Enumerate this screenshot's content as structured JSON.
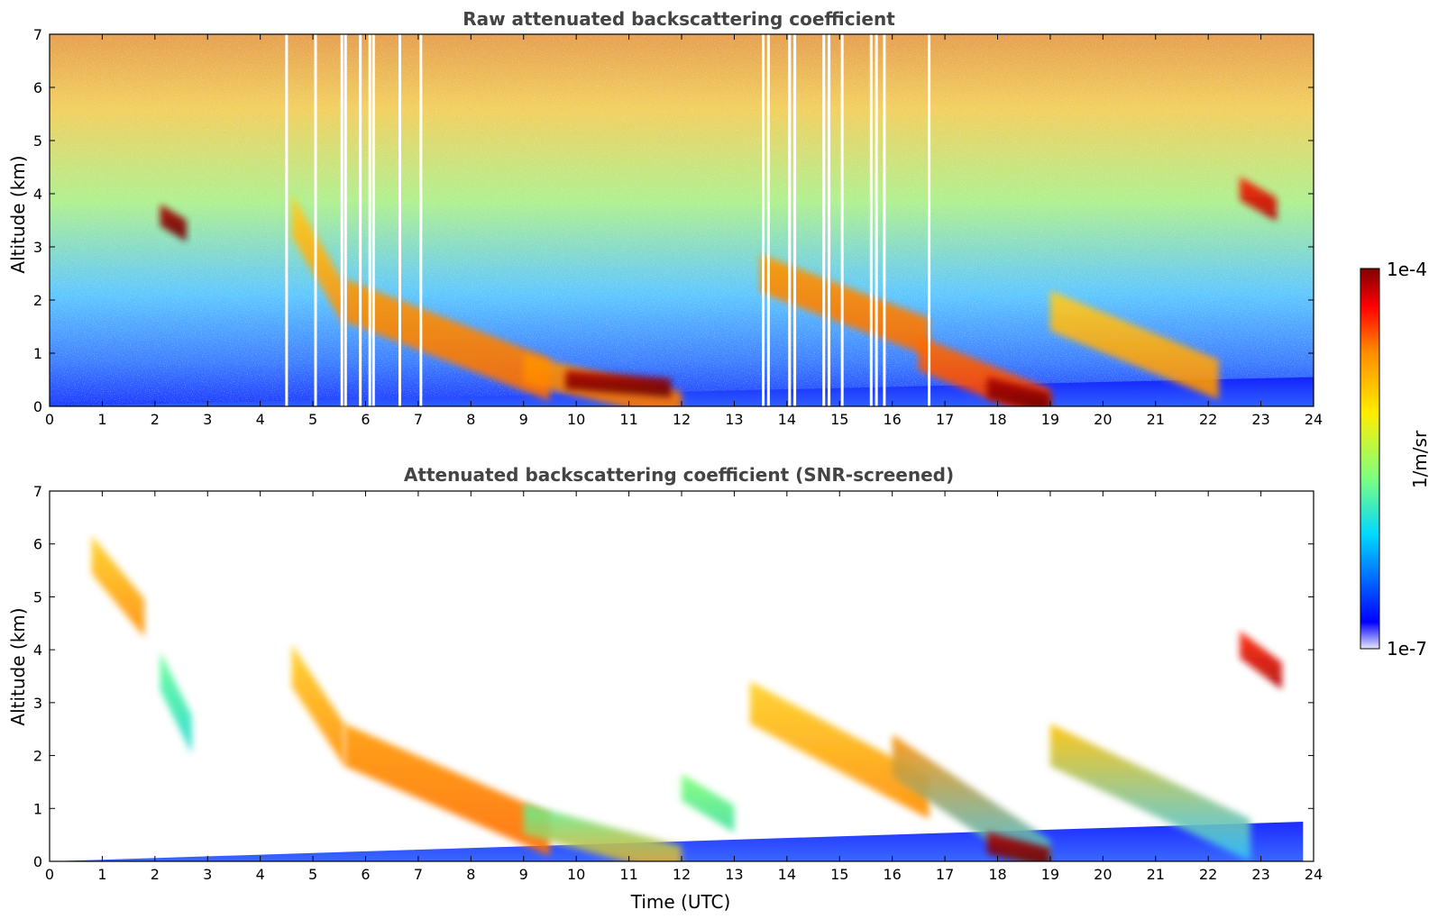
{
  "colors": {
    "jet_dark_red": "#7f0000",
    "jet_red": "#ff0000",
    "jet_orange": "#ff8c00",
    "jet_yellow": "#ffee00",
    "jet_green": "#7fff7f",
    "jet_cyan": "#00d8ff",
    "jet_blue": "#0000ff",
    "background": "#ffffff",
    "masked_black": "#000000",
    "title_gray": "#444444"
  },
  "colorbar": {
    "max_label": "1e-4",
    "min_label": "1e-7",
    "unit_label": "1/m/sr",
    "scale": "log",
    "colormap": "jet"
  },
  "chart_data": [
    {
      "type": "heatmap",
      "title": "Raw attenuated backscattering coefficient",
      "xlabel": "",
      "ylabel": "Altitude (km)",
      "xlim": [
        0,
        24
      ],
      "ylim": [
        0,
        7
      ],
      "x_ticks": [
        "0",
        "1",
        "2",
        "3",
        "4",
        "5",
        "6",
        "7",
        "8",
        "9",
        "10",
        "11",
        "12",
        "13",
        "14",
        "15",
        "16",
        "17",
        "18",
        "19",
        "20",
        "21",
        "22",
        "23",
        "24"
      ],
      "y_ticks": [
        "0",
        "1",
        "2",
        "3",
        "4",
        "5",
        "6",
        "7"
      ],
      "value_range": [
        "1e-7",
        "1e-4"
      ],
      "data_gaps_hours": [
        4.5,
        5.05,
        5.55,
        5.62,
        5.9,
        6.08,
        6.15,
        6.65,
        7.05,
        13.55,
        13.65,
        14.05,
        14.15,
        14.7,
        14.8,
        15.05,
        15.6,
        15.7,
        15.85,
        16.7
      ],
      "features": [
        {
          "t0": 0,
          "t1": 24,
          "z0": 0,
          "z1": 0.55,
          "level": "blue"
        },
        {
          "t0": 4.6,
          "t1": 5.6,
          "z0": 3.6,
          "z1": 1.9,
          "level": "yellow-orange"
        },
        {
          "t0": 5.6,
          "t1": 9.5,
          "z0": 2.0,
          "z1": 0.5,
          "level": "orange"
        },
        {
          "t0": 9.0,
          "t1": 12.0,
          "z0": 0.7,
          "z1": 0.0,
          "level": "orange"
        },
        {
          "t0": 9.8,
          "t1": 11.8,
          "z0": 0.5,
          "z1": 0.35,
          "level": "dark-red"
        },
        {
          "t0": 13.5,
          "t1": 16.7,
          "z0": 2.5,
          "z1": 1.3,
          "level": "orange"
        },
        {
          "t0": 16.5,
          "t1": 19.0,
          "z0": 1.0,
          "z1": 0.0,
          "level": "orange-red"
        },
        {
          "t0": 17.8,
          "t1": 19.0,
          "z0": 0.35,
          "z1": 0.05,
          "level": "dark-red"
        },
        {
          "t0": 19.0,
          "t1": 22.2,
          "z0": 1.8,
          "z1": 0.5,
          "level": "yellow-orange"
        },
        {
          "t0": 22.6,
          "t1": 23.3,
          "z0": 4.1,
          "z1": 3.7,
          "level": "red"
        },
        {
          "t0": 2.1,
          "t1": 2.6,
          "z0": 3.6,
          "z1": 3.3,
          "level": "dark-red"
        }
      ]
    },
    {
      "type": "heatmap",
      "title": "Attenuated backscattering coefficient (SNR-screened)",
      "xlabel": "Time (UTC)",
      "ylabel": "Altitude (km)",
      "xlim": [
        0,
        24
      ],
      "ylim": [
        0,
        7
      ],
      "x_ticks": [
        "0",
        "1",
        "2",
        "3",
        "4",
        "5",
        "6",
        "7",
        "8",
        "9",
        "10",
        "11",
        "12",
        "13",
        "14",
        "15",
        "16",
        "17",
        "18",
        "19",
        "20",
        "21",
        "22",
        "23",
        "24"
      ],
      "y_ticks": [
        "0",
        "1",
        "2",
        "3",
        "4",
        "5",
        "6",
        "7"
      ],
      "value_range": [
        "1e-7",
        "1e-4"
      ],
      "features": [
        {
          "t0": 0,
          "t1": 23.8,
          "z0": 0,
          "z1": 0.75,
          "level": "blue"
        },
        {
          "t0": 0.8,
          "t1": 1.8,
          "z0": 5.8,
          "z1": 4.6,
          "level": "yellow-orange"
        },
        {
          "t0": 2.1,
          "t1": 2.7,
          "z0": 3.6,
          "z1": 2.4,
          "level": "green-cyan"
        },
        {
          "t0": 4.6,
          "t1": 5.6,
          "z0": 3.7,
          "z1": 2.2,
          "level": "yellow-orange"
        },
        {
          "t0": 5.6,
          "t1": 9.5,
          "z0": 2.2,
          "z1": 0.5,
          "level": "orange"
        },
        {
          "t0": 9.0,
          "t1": 12.0,
          "z0": 0.8,
          "z1": 0.0,
          "level": "green-orange"
        },
        {
          "t0": 12.0,
          "t1": 13.0,
          "z0": 1.4,
          "z1": 0.8,
          "level": "green"
        },
        {
          "t0": 13.3,
          "t1": 16.7,
          "z0": 3.0,
          "z1": 1.2,
          "level": "yellow-orange"
        },
        {
          "t0": 16.0,
          "t1": 19.0,
          "z0": 2.0,
          "z1": 0.0,
          "level": "orange-cyan"
        },
        {
          "t0": 17.8,
          "t1": 19.0,
          "z0": 0.35,
          "z1": 0.05,
          "level": "dark-red"
        },
        {
          "t0": 19.0,
          "t1": 22.8,
          "z0": 2.2,
          "z1": 0.4,
          "level": "yellow-cyan"
        },
        {
          "t0": 22.6,
          "t1": 23.4,
          "z0": 4.1,
          "z1": 3.5,
          "level": "red"
        }
      ]
    }
  ]
}
